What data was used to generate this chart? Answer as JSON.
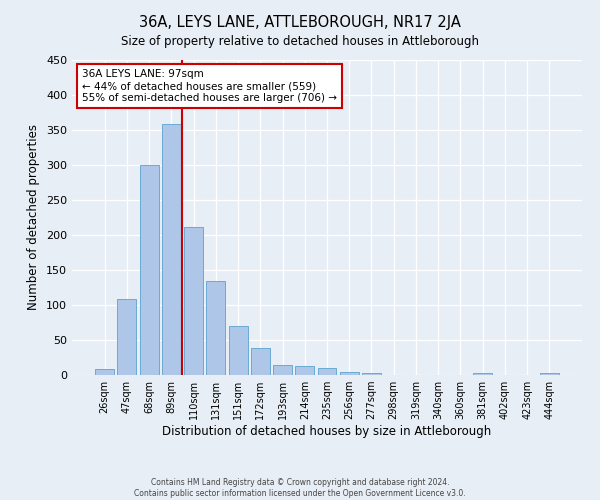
{
  "title": "36A, LEYS LANE, ATTLEBOROUGH, NR17 2JA",
  "subtitle": "Size of property relative to detached houses in Attleborough",
  "xlabel": "Distribution of detached houses by size in Attleborough",
  "ylabel": "Number of detached properties",
  "bar_labels": [
    "26sqm",
    "47sqm",
    "68sqm",
    "89sqm",
    "110sqm",
    "131sqm",
    "151sqm",
    "172sqm",
    "193sqm",
    "214sqm",
    "235sqm",
    "256sqm",
    "277sqm",
    "298sqm",
    "319sqm",
    "340sqm",
    "360sqm",
    "381sqm",
    "402sqm",
    "423sqm",
    "444sqm"
  ],
  "bar_values": [
    8,
    108,
    300,
    358,
    212,
    135,
    70,
    38,
    15,
    13,
    10,
    5,
    3,
    0,
    0,
    0,
    0,
    3,
    0,
    0,
    3
  ],
  "bar_color": "#aec6e8",
  "bar_edge_color": "#6aaad4",
  "vline_x": 3.5,
  "vline_color": "#cc0000",
  "annotation_title": "36A LEYS LANE: 97sqm",
  "annotation_line1": "← 44% of detached houses are smaller (559)",
  "annotation_line2": "55% of semi-detached houses are larger (706) →",
  "annotation_box_color": "#ffffff",
  "annotation_box_edge": "#cc0000",
  "ylim": [
    0,
    450
  ],
  "yticks": [
    0,
    50,
    100,
    150,
    200,
    250,
    300,
    350,
    400,
    450
  ],
  "footer1": "Contains HM Land Registry data © Crown copyright and database right 2024.",
  "footer2": "Contains public sector information licensed under the Open Government Licence v3.0.",
  "bg_color": "#e8eef5",
  "plot_bg_color": "#e8eef5"
}
